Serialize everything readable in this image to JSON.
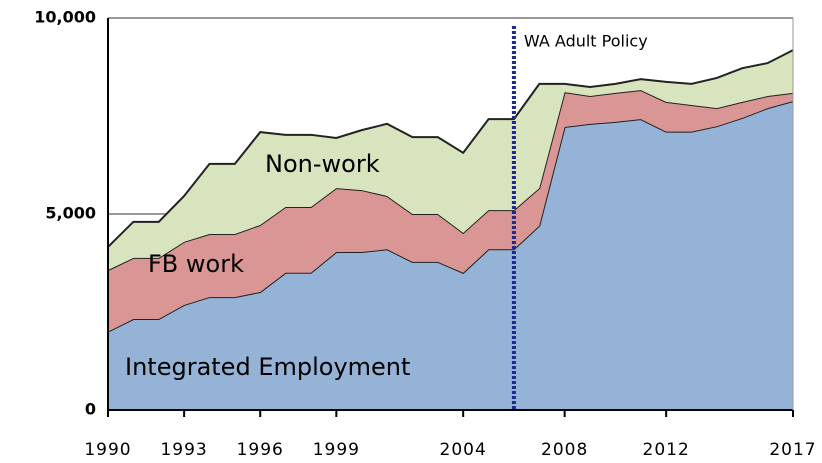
{
  "chart_data": {
    "type": "stacked_area",
    "x": [
      1990,
      1991,
      1992,
      1993,
      1994,
      1995,
      1996,
      1997,
      1998,
      1999,
      2000,
      2001,
      2002,
      2003,
      2004,
      2005,
      2006,
      2007,
      2008,
      2009,
      2010,
      2011,
      2012,
      2013,
      2014,
      2015,
      2016,
      2017
    ],
    "series": [
      {
        "name": "Integrated Employment",
        "color": "#95b3d7",
        "values": [
          2000,
          2320,
          2320,
          2680,
          2880,
          2880,
          3010,
          3500,
          3500,
          4030,
          4030,
          4100,
          3780,
          3780,
          3500,
          4100,
          4100,
          4700,
          7220,
          7300,
          7350,
          7420,
          7100,
          7100,
          7240,
          7450,
          7700,
          7880
        ]
      },
      {
        "name": "FB work",
        "color": "#d99694",
        "values": [
          1570,
          1560,
          1560,
          1610,
          1610,
          1610,
          1710,
          1680,
          1680,
          1630,
          1580,
          1360,
          1220,
          1220,
          1020,
          1000,
          1000,
          960,
          890,
          710,
          740,
          740,
          760,
          680,
          460,
          410,
          310,
          210
        ]
      },
      {
        "name": "Non-work",
        "color": "#d7e4bd",
        "values": [
          590,
          920,
          920,
          1170,
          1790,
          1790,
          2370,
          1840,
          1840,
          1280,
          1530,
          1840,
          1960,
          1960,
          2040,
          2320,
          2320,
          2660,
          210,
          230,
          230,
          280,
          510,
          540,
          770,
          860,
          840,
          1090
        ]
      }
    ],
    "xlim": [
      1990,
      2017
    ],
    "xticks": [
      1990,
      1993,
      1996,
      1999,
      2004,
      2008,
      2012,
      2017
    ],
    "ylim": [
      0,
      10000
    ],
    "yticks": [
      0,
      {
        "value": 5000,
        "label": "5,000"
      },
      {
        "value": 10000,
        "label": "10,000"
      }
    ],
    "grid": true,
    "annotations": [
      {
        "text": "WA Adult Policy",
        "x": 2006
      }
    ]
  }
}
